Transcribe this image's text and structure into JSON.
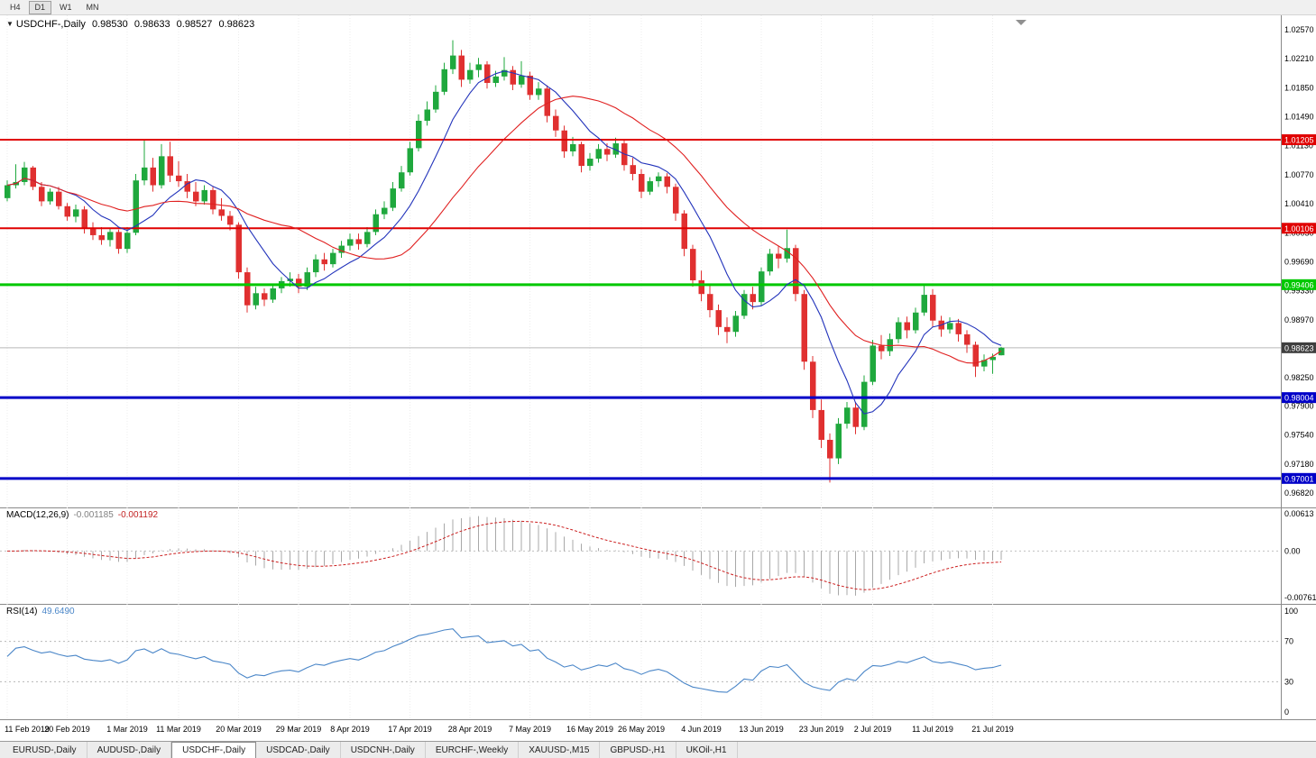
{
  "toolbar": {
    "periods": [
      {
        "label": "H4",
        "active": false
      },
      {
        "label": "D1",
        "active": true
      },
      {
        "label": "W1",
        "active": false
      },
      {
        "label": "MN",
        "active": false
      }
    ]
  },
  "title": {
    "symbol": "USDCHF-,Daily",
    "open": "0.98530",
    "high": "0.98633",
    "low": "0.98527",
    "close": "0.98623"
  },
  "indicators": {
    "macd": {
      "label": "MACD(12,26,9)",
      "value1": "-0.001185",
      "value2": "-0.001192",
      "axis": [
        {
          "v": 0.00613,
          "t": "0.00613"
        },
        {
          "v": 0,
          "t": "0.00"
        },
        {
          "v": -0.00761,
          "t": "-0.00761"
        }
      ]
    },
    "rsi": {
      "label": "RSI(14)",
      "value": "49.6490",
      "axis": [
        {
          "v": 100,
          "t": "100"
        },
        {
          "v": 70,
          "t": "70"
        },
        {
          "v": 30,
          "t": "30"
        },
        {
          "v": 0,
          "t": "0"
        }
      ],
      "levels": [
        70,
        30
      ]
    }
  },
  "chart_data": {
    "type": "candlestick",
    "symbol": "USDCHF-",
    "timeframe": "Daily",
    "price_top": 1.02749,
    "price_bottom": 0.96641,
    "current_price": 0.98623,
    "price_axis": [
      1.0257,
      1.0221,
      1.0185,
      1.0149,
      1.0113,
      1.0077,
      1.0041,
      1.0005,
      0.9969,
      0.9933,
      0.9897,
      0.9825,
      0.979,
      0.9754,
      0.9718,
      0.9682
    ],
    "hlines": [
      {
        "price": 1.01205,
        "color": "#e00000",
        "width": 2
      },
      {
        "price": 1.00106,
        "color": "#e00000",
        "width": 2
      },
      {
        "price": 0.99406,
        "color": "#00c800",
        "width": 3
      },
      {
        "price": 0.98004,
        "color": "#0000c8",
        "width": 3
      },
      {
        "price": 0.97001,
        "color": "#0000c8",
        "width": 3
      }
    ],
    "ticks": [
      {
        "i": 0,
        "label": "11 Feb 2019"
      },
      {
        "i": 7,
        "label": "20 Feb 2019"
      },
      {
        "i": 14,
        "label": "1 Mar 2019"
      },
      {
        "i": 20,
        "label": "11 Mar 2019"
      },
      {
        "i": 27,
        "label": "20 Mar 2019"
      },
      {
        "i": 34,
        "label": "29 Mar 2019"
      },
      {
        "i": 40,
        "label": "8 Apr 2019"
      },
      {
        "i": 47,
        "label": "17 Apr 2019"
      },
      {
        "i": 54,
        "label": "28 Apr 2019"
      },
      {
        "i": 61,
        "label": "7 May 2019"
      },
      {
        "i": 68,
        "label": "16 May 2019"
      },
      {
        "i": 74,
        "label": "26 May 2019"
      },
      {
        "i": 81,
        "label": "4 Jun 2019"
      },
      {
        "i": 88,
        "label": "13 Jun 2019"
      },
      {
        "i": 95,
        "label": "23 Jun 2019"
      },
      {
        "i": 101,
        "label": "2 Jul 2019"
      },
      {
        "i": 108,
        "label": "11 Jul 2019"
      },
      {
        "i": 115,
        "label": "21 Jul 2019"
      }
    ],
    "ma_fast_period": 8,
    "ma_slow_period": 20,
    "colors": {
      "bull": "#1fa83d",
      "bear": "#e03030",
      "ma_fast": "#2233bb",
      "ma_slow": "#e02020",
      "macd_hist": "#a8a8a8",
      "macd_signal": "#cc2020",
      "rsi_line": "#4a86c8",
      "price_tag": "#3f3f3f",
      "grid": "#ececec",
      "axis_line": "#8a8a8a",
      "current_line": "#b8b8b8"
    },
    "candles": [
      [
        1.0048,
        1.007,
        1.0044,
        1.0064
      ],
      [
        1.0064,
        1.009,
        1.006,
        1.0068
      ],
      [
        1.0068,
        1.0093,
        1.0064,
        1.0086
      ],
      [
        1.0086,
        1.0088,
        1.0058,
        1.0062
      ],
      [
        1.0062,
        1.0068,
        1.0038,
        1.0044
      ],
      [
        1.0044,
        1.006,
        1.004,
        1.0056
      ],
      [
        1.0056,
        1.0062,
        1.0034,
        1.0038
      ],
      [
        1.0038,
        1.0042,
        1.002,
        1.0025
      ],
      [
        1.0025,
        1.004,
        1.0018,
        1.0034
      ],
      [
        1.0034,
        1.0038,
        1.0004,
        1.001
      ],
      [
        1.001,
        1.0018,
        0.9996,
        1.0002
      ],
      [
        1.0002,
        1.0012,
        0.999,
        0.9996
      ],
      [
        0.9996,
        1.001,
        0.9988,
        1.0006
      ],
      [
        1.0006,
        1.0009,
        0.9979,
        0.9985
      ],
      [
        0.9985,
        1.0012,
        0.998,
        1.0005
      ],
      [
        1.0005,
        1.0078,
        1.0002,
        1.007
      ],
      [
        1.007,
        1.012,
        1.0064,
        1.0086
      ],
      [
        1.0086,
        1.0098,
        1.0056,
        1.0064
      ],
      [
        1.0064,
        1.0115,
        1.006,
        1.01
      ],
      [
        1.01,
        1.0118,
        1.0068,
        1.0076
      ],
      [
        1.0076,
        1.0094,
        1.0062,
        1.0069
      ],
      [
        1.0069,
        1.0078,
        1.0048,
        1.0056
      ],
      [
        1.0056,
        1.0068,
        1.0038,
        1.0044
      ],
      [
        1.0044,
        1.0064,
        1.004,
        1.0058
      ],
      [
        1.0058,
        1.0062,
        1.0028,
        1.0034
      ],
      [
        1.0034,
        1.0048,
        1.002,
        1.0026
      ],
      [
        1.0026,
        1.0032,
        1.0008,
        1.0015
      ],
      [
        1.0015,
        1.0018,
        0.9948,
        0.9956
      ],
      [
        0.9956,
        0.9962,
        0.9906,
        0.9915
      ],
      [
        0.9915,
        0.9938,
        0.991,
        0.993
      ],
      [
        0.993,
        0.9936,
        0.9914,
        0.9922
      ],
      [
        0.9922,
        0.9942,
        0.9918,
        0.9936
      ],
      [
        0.9936,
        0.995,
        0.993,
        0.9945
      ],
      [
        0.9945,
        0.9956,
        0.9938,
        0.9948
      ],
      [
        0.9948,
        0.9954,
        0.993,
        0.9938
      ],
      [
        0.9938,
        0.9962,
        0.9934,
        0.9956
      ],
      [
        0.9956,
        0.9978,
        0.995,
        0.9972
      ],
      [
        0.9972,
        0.998,
        0.9958,
        0.9966
      ],
      [
        0.9966,
        0.9985,
        0.9962,
        0.998
      ],
      [
        0.998,
        0.9995,
        0.9974,
        0.9989
      ],
      [
        0.9989,
        1.0004,
        0.9983,
        0.9997
      ],
      [
        0.9997,
        1.0004,
        0.9984,
        0.9991
      ],
      [
        0.9991,
        1.0012,
        0.9987,
        1.0006
      ],
      [
        1.0006,
        1.0034,
        1.0002,
        1.0028
      ],
      [
        1.0028,
        1.0044,
        1.0022,
        1.0036
      ],
      [
        1.0036,
        1.0068,
        1.0032,
        1.006
      ],
      [
        1.006,
        1.0088,
        1.0056,
        1.008
      ],
      [
        1.008,
        1.0118,
        1.0076,
        1.011
      ],
      [
        1.011,
        1.0152,
        1.0106,
        1.0144
      ],
      [
        1.0144,
        1.0168,
        1.0138,
        1.0158
      ],
      [
        1.0158,
        1.0188,
        1.0154,
        1.018
      ],
      [
        1.018,
        1.0216,
        1.0176,
        1.0208
      ],
      [
        1.0208,
        1.0244,
        1.0202,
        1.0225
      ],
      [
        1.0225,
        1.0232,
        1.0186,
        1.0195
      ],
      [
        1.0195,
        1.0216,
        1.019,
        1.0207
      ],
      [
        1.0207,
        1.0222,
        1.0198,
        1.0214
      ],
      [
        1.0214,
        1.0218,
        1.0184,
        1.0191
      ],
      [
        1.0191,
        1.0206,
        1.0186,
        1.0199
      ],
      [
        1.0199,
        1.0223,
        1.0194,
        1.0207
      ],
      [
        1.0207,
        1.0212,
        1.0182,
        1.0189
      ],
      [
        1.0189,
        1.0218,
        1.0185,
        1.02
      ],
      [
        1.02,
        1.0205,
        1.017,
        1.0176
      ],
      [
        1.0176,
        1.0192,
        1.017,
        1.0184
      ],
      [
        1.0184,
        1.0188,
        1.0142,
        1.015
      ],
      [
        1.015,
        1.0158,
        1.0124,
        1.0132
      ],
      [
        1.0132,
        1.0138,
        1.0098,
        1.0106
      ],
      [
        1.0106,
        1.0124,
        1.01,
        1.0115
      ],
      [
        1.0115,
        1.0118,
        1.008,
        1.0088
      ],
      [
        1.0088,
        1.0104,
        1.0082,
        1.0097
      ],
      [
        1.0097,
        1.0115,
        1.0092,
        1.0109
      ],
      [
        1.0109,
        1.0116,
        1.0094,
        1.0102
      ],
      [
        1.0102,
        1.0123,
        1.0098,
        1.0116
      ],
      [
        1.0116,
        1.012,
        1.0082,
        1.0089
      ],
      [
        1.0089,
        1.0098,
        1.007,
        1.0078
      ],
      [
        1.0078,
        1.0084,
        1.0048,
        1.0056
      ],
      [
        1.0056,
        1.0074,
        1.0052,
        1.0069
      ],
      [
        1.0069,
        1.008,
        1.0062,
        1.0075
      ],
      [
        1.0075,
        1.0079,
        1.0054,
        1.0062
      ],
      [
        1.0062,
        1.0066,
        1.002,
        1.0029
      ],
      [
        1.0029,
        1.0033,
        0.9976,
        0.9985
      ],
      [
        0.9985,
        0.999,
        0.9938,
        0.9946
      ],
      [
        0.9946,
        0.9958,
        0.992,
        0.9929
      ],
      [
        0.9929,
        0.994,
        0.99,
        0.9909
      ],
      [
        0.9909,
        0.9916,
        0.9878,
        0.9888
      ],
      [
        0.9888,
        0.99,
        0.9868,
        0.9882
      ],
      [
        0.9882,
        0.9908,
        0.9876,
        0.9902
      ],
      [
        0.9902,
        0.9934,
        0.9898,
        0.9929
      ],
      [
        0.9929,
        0.9938,
        0.991,
        0.9919
      ],
      [
        0.9919,
        0.9962,
        0.9915,
        0.9957
      ],
      [
        0.9957,
        0.9985,
        0.9952,
        0.9979
      ],
      [
        0.9979,
        0.9988,
        0.9961,
        0.9973
      ],
      [
        0.9973,
        1.0009,
        0.9968,
        0.9986
      ],
      [
        0.9986,
        0.999,
        0.992,
        0.9929
      ],
      [
        0.9929,
        0.9934,
        0.9835,
        0.9845
      ],
      [
        0.9845,
        0.9852,
        0.9775,
        0.9785
      ],
      [
        0.9785,
        0.9798,
        0.9738,
        0.9748
      ],
      [
        0.9748,
        0.9756,
        0.9695,
        0.9725
      ],
      [
        0.9725,
        0.9775,
        0.9718,
        0.9768
      ],
      [
        0.9768,
        0.9795,
        0.9762,
        0.9788
      ],
      [
        0.9788,
        0.9795,
        0.9755,
        0.9764
      ],
      [
        0.9764,
        0.9828,
        0.976,
        0.982
      ],
      [
        0.982,
        0.9872,
        0.9816,
        0.9865
      ],
      [
        0.9865,
        0.9878,
        0.9848,
        0.9858
      ],
      [
        0.9858,
        0.988,
        0.9852,
        0.9873
      ],
      [
        0.9873,
        0.99,
        0.9868,
        0.9894
      ],
      [
        0.9894,
        0.9901,
        0.9874,
        0.9884
      ],
      [
        0.9884,
        0.9912,
        0.988,
        0.9906
      ],
      [
        0.9906,
        0.9942,
        0.9902,
        0.9928
      ],
      [
        0.9928,
        0.9935,
        0.9888,
        0.9896
      ],
      [
        0.9896,
        0.9902,
        0.9876,
        0.9885
      ],
      [
        0.9885,
        0.99,
        0.988,
        0.9893
      ],
      [
        0.9893,
        0.9898,
        0.987,
        0.9879
      ],
      [
        0.9879,
        0.9884,
        0.9856,
        0.9866
      ],
      [
        0.9866,
        0.987,
        0.9826,
        0.9839
      ],
      [
        0.9839,
        0.9854,
        0.9833,
        0.9847
      ],
      [
        0.9847,
        0.9855,
        0.983,
        0.9851
      ],
      [
        0.9853,
        0.98633,
        0.98527,
        0.98623
      ]
    ]
  },
  "tabs": [
    {
      "label": "EURUSD-,Daily",
      "active": false
    },
    {
      "label": "AUDUSD-,Daily",
      "active": false
    },
    {
      "label": "USDCHF-,Daily",
      "active": true
    },
    {
      "label": "USDCAD-,Daily",
      "active": false
    },
    {
      "label": "USDCNH-,Daily",
      "active": false
    },
    {
      "label": "EURCHF-,Weekly",
      "active": false
    },
    {
      "label": "XAUUSD-,M15",
      "active": false
    },
    {
      "label": "GBPUSD-,H1",
      "active": false
    },
    {
      "label": "UKOil-,H1",
      "active": false
    }
  ]
}
